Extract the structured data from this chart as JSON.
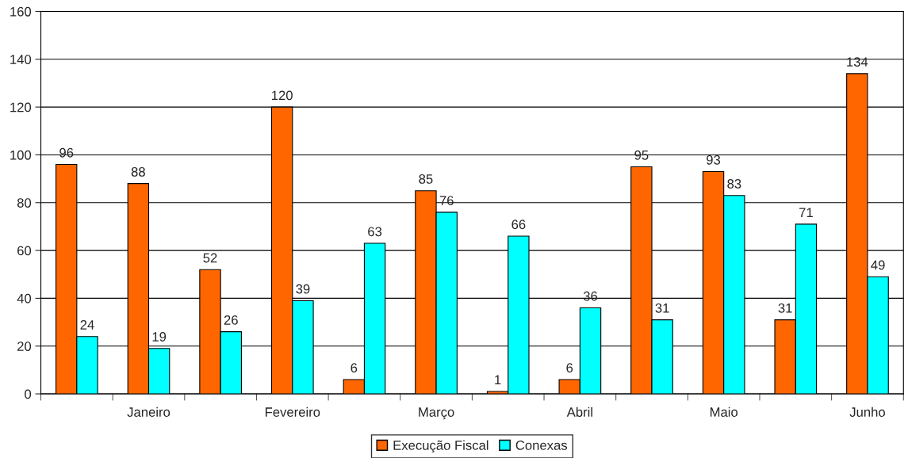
{
  "chart_data": {
    "type": "bar",
    "categories": [
      null,
      "Janeiro",
      null,
      "Fevereiro",
      null,
      "Março",
      null,
      "Abril",
      null,
      "Maio",
      null,
      "Junho"
    ],
    "series": [
      {
        "name": "Execução Fiscal",
        "color": "#ff6600",
        "values": [
          96,
          88,
          52,
          120,
          6,
          85,
          1,
          6,
          95,
          93,
          31,
          134
        ]
      },
      {
        "name": "Conexas",
        "color": "#00ffff",
        "values": [
          24,
          19,
          26,
          39,
          63,
          76,
          66,
          36,
          31,
          83,
          71,
          49
        ]
      }
    ],
    "ylim": [
      0,
      160
    ],
    "yticks": [
      0,
      20,
      40,
      60,
      80,
      100,
      120,
      140,
      160
    ],
    "grid": "y",
    "legend": "bottom",
    "data_labels": true
  }
}
